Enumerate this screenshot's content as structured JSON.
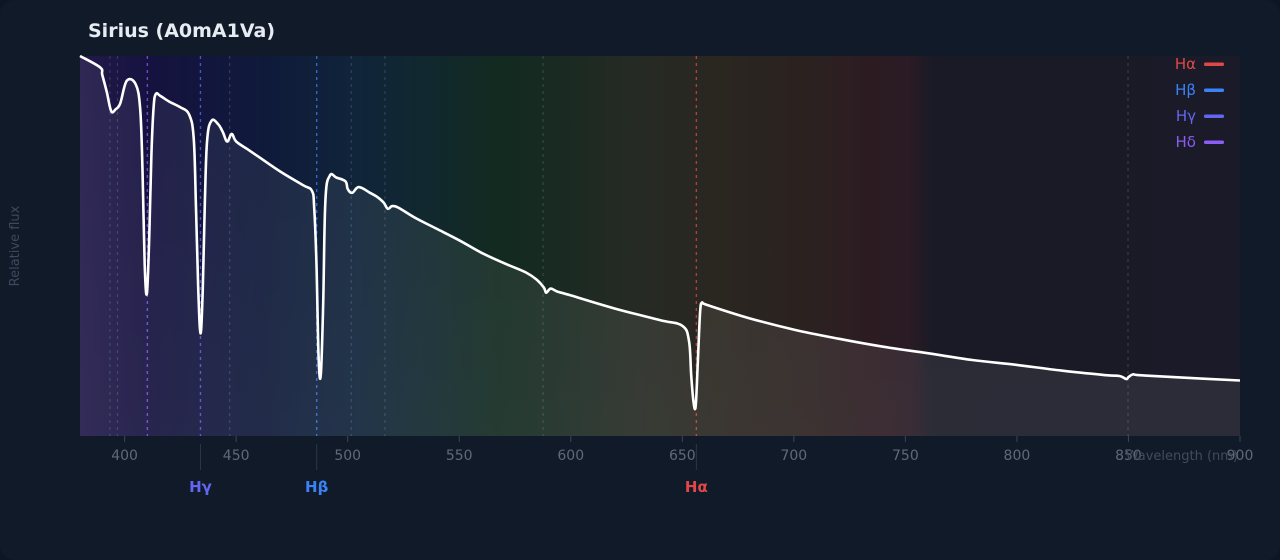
{
  "title": "Sirius (A0mA1Va)",
  "chart_data": {
    "type": "line",
    "title": "Sirius (A0mA1Va)",
    "xlabel": "Wavelength (nm)",
    "ylabel": "Relative flux",
    "xlim": [
      380,
      900
    ],
    "ylim": [
      0,
      1.0
    ],
    "xticks": [
      400,
      450,
      500,
      550,
      600,
      650,
      700,
      750,
      800,
      850,
      900
    ],
    "series": [
      {
        "color": "#ffffff",
        "x": [
          380,
          389,
          390,
          392,
          394,
          396,
          398,
          401,
          405,
          407,
          408,
          409,
          410,
          411,
          412,
          413,
          414,
          416,
          420,
          425,
          429,
          431,
          432,
          433,
          434,
          435,
          436,
          437,
          439,
          442,
          444,
          446,
          448,
          450,
          455,
          460,
          470,
          480,
          484,
          485,
          486,
          487,
          488,
          489,
          490,
          492,
          495,
          499,
          500,
          502,
          505,
          510,
          513,
          516,
          518,
          520,
          523,
          530,
          540,
          550,
          560,
          570,
          580,
          585,
          588,
          589,
          591,
          594,
          600,
          620,
          640,
          650,
          653,
          654,
          655,
          656,
          657,
          658,
          659,
          661,
          680,
          700,
          720,
          740,
          760,
          780,
          800,
          820,
          840,
          846,
          849,
          850,
          852,
          855,
          870,
          900
        ],
        "y": [
          1.0,
          0.97,
          0.95,
          0.905,
          0.855,
          0.86,
          0.875,
          0.935,
          0.925,
          0.86,
          0.7,
          0.45,
          0.375,
          0.52,
          0.74,
          0.865,
          0.9,
          0.895,
          0.88,
          0.865,
          0.845,
          0.78,
          0.6,
          0.39,
          0.27,
          0.38,
          0.62,
          0.78,
          0.83,
          0.82,
          0.8,
          0.775,
          0.795,
          0.775,
          0.755,
          0.735,
          0.695,
          0.66,
          0.645,
          0.6,
          0.45,
          0.2,
          0.165,
          0.35,
          0.62,
          0.685,
          0.68,
          0.67,
          0.65,
          0.64,
          0.655,
          0.64,
          0.63,
          0.615,
          0.598,
          0.605,
          0.6,
          0.575,
          0.545,
          0.515,
          0.482,
          0.455,
          0.43,
          0.41,
          0.39,
          0.377,
          0.388,
          0.38,
          0.37,
          0.335,
          0.305,
          0.29,
          0.25,
          0.16,
          0.09,
          0.08,
          0.2,
          0.33,
          0.35,
          0.345,
          0.31,
          0.28,
          0.256,
          0.235,
          0.218,
          0.2,
          0.187,
          0.172,
          0.16,
          0.158,
          0.15,
          0.155,
          0.162,
          0.16,
          0.155,
          0.146
        ]
      }
    ],
    "lines": [
      {
        "name": "Hα",
        "wavelength": 656.3,
        "color": "#e04848"
      },
      {
        "name": "Hβ",
        "wavelength": 486.1,
        "color": "#3b82f6"
      },
      {
        "name": "Hγ",
        "wavelength": 434.0,
        "color": "#6366f1"
      },
      {
        "name": "Hδ",
        "wavelength": 410.2,
        "color": "#8b5cf6"
      }
    ],
    "minor_lines": [
      393.4,
      396.8,
      447.1,
      501.6,
      516.7,
      587.6,
      849.8
    ],
    "legend": "top-right",
    "grid": false
  }
}
